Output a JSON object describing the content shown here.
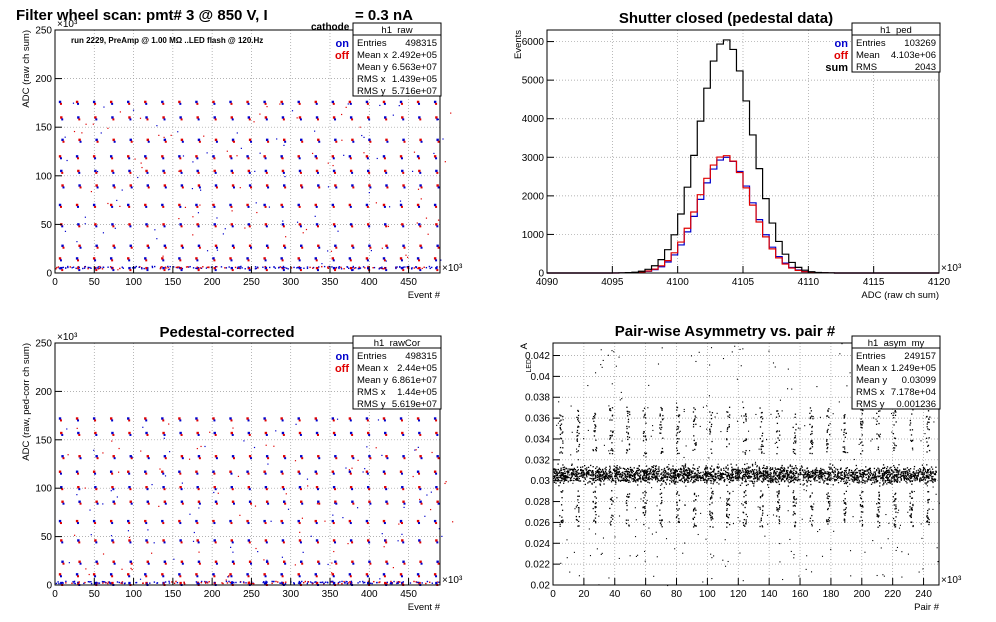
{
  "colors": {
    "on": "#0000cc",
    "off": "#e00000",
    "sum": "#000000",
    "grid": "#9a9a9a"
  },
  "chart_data": [
    {
      "id": "raw",
      "type": "scatter",
      "title": "Filter wheel scan: pmt#   3 @   850 V, I",
      "title_sub": "cathode",
      "title_tail": "= 0.3 nA",
      "annotation": "run 2229, PreAmp @ 1.00 MΩ ..LED flash @  120.Hz",
      "xlabel": "Event #",
      "ylabel": "ADC (raw ch sum)",
      "x_exponent": "×10³",
      "y_exponent": "×10³",
      "xlim": [
        0,
        490
      ],
      "ylim": [
        0,
        250
      ],
      "xticks": [
        0,
        50,
        100,
        150,
        200,
        250,
        300,
        350,
        400,
        450
      ],
      "yticks": [
        0,
        50,
        100,
        150,
        200,
        250
      ],
      "grid": true,
      "legend_position": "top-right",
      "legend": [
        "on",
        "off"
      ],
      "stats": {
        "name": "h1_raw",
        "rows": [
          [
            "Entries",
            "498315"
          ],
          [
            "Mean x",
            "2.492e+05"
          ],
          [
            "Mean y",
            "6.563e+07"
          ],
          [
            "RMS x",
            "1.439e+05"
          ],
          [
            "RMS y",
            "5.716e+07"
          ]
        ]
      },
      "levels": [
        176,
        160,
        137,
        120,
        105,
        90,
        70,
        50,
        28,
        15,
        5
      ],
      "period": 21.7
    },
    {
      "id": "ped",
      "type": "line",
      "title": "Shutter closed (pedestal data)",
      "xlabel": "ADC (raw ch sum)",
      "ylabel": "Events",
      "x_exponent": "×10³",
      "xlim": [
        4090,
        4120
      ],
      "ylim": [
        0,
        6300
      ],
      "xticks": [
        4090,
        4095,
        4100,
        4105,
        4110,
        4115,
        4120
      ],
      "yticks": [
        0,
        1000,
        2000,
        3000,
        4000,
        5000,
        6000
      ],
      "grid": true,
      "legend_position": "top-right",
      "legend": [
        "on",
        "off",
        "sum"
      ],
      "stats": {
        "name": "h1_ped",
        "rows": [
          [
            "Entries",
            "103269"
          ],
          [
            "Mean",
            "4.103e+06"
          ],
          [
            "RMS",
            "2043"
          ]
        ]
      },
      "series": [
        {
          "name": "on",
          "shape": "gaussian",
          "mean": 4103.7,
          "sigma": 2.05,
          "peak": 3000
        },
        {
          "name": "off",
          "shape": "gaussian",
          "mean": 4103.6,
          "sigma": 2.05,
          "peak": 3050
        },
        {
          "name": "sum",
          "shape": "gaussian",
          "mean": 4103.65,
          "sigma": 2.05,
          "peak": 6050
        }
      ],
      "bin_width": 0.5
    },
    {
      "id": "rawcor",
      "type": "scatter",
      "title": "Pedestal-corrected",
      "xlabel": "Event #",
      "ylabel": "ADC (raw, ped-corr ch sum)",
      "x_exponent": "×10³",
      "y_exponent": "×10³",
      "xlim": [
        0,
        490
      ],
      "ylim": [
        0,
        250
      ],
      "xticks": [
        0,
        50,
        100,
        150,
        200,
        250,
        300,
        350,
        400,
        450
      ],
      "yticks": [
        0,
        50,
        100,
        150,
        200,
        250
      ],
      "grid": true,
      "legend_position": "top-right",
      "legend": [
        "on",
        "off"
      ],
      "stats": {
        "name": "h1_rawCor",
        "rows": [
          [
            "Entries",
            "498315"
          ],
          [
            "Mean x",
            "2.44e+05"
          ],
          [
            "Mean y",
            "6.861e+07"
          ],
          [
            "RMS x",
            "1.44e+05"
          ],
          [
            "RMS y",
            "5.619e+07"
          ]
        ]
      },
      "levels": [
        172,
        157,
        133,
        117,
        101,
        86,
        66,
        46,
        24,
        11,
        2
      ],
      "period": 21.7
    },
    {
      "id": "asym",
      "type": "scatter",
      "title": "Pair-wise Asymmetry vs. pair #",
      "xlabel": "Pair #",
      "ylabel": "A",
      "ylabel_sub": "LED",
      "x_exponent": "×10³",
      "xlim": [
        0,
        250
      ],
      "ylim": [
        0.02,
        0.0432
      ],
      "xticks": [
        0,
        20,
        40,
        60,
        80,
        100,
        120,
        140,
        160,
        180,
        200,
        220,
        240
      ],
      "yticks": [
        0.02,
        0.022,
        0.024,
        0.026,
        0.028,
        0.03,
        0.032,
        0.034,
        0.036,
        0.038,
        0.04,
        0.042
      ],
      "grid": true,
      "stats": {
        "name": "h1_asym_my",
        "rows": [
          [
            "Entries",
            "249157"
          ],
          [
            "Mean x",
            "1.249e+05"
          ],
          [
            "Mean y",
            "0.03099"
          ],
          [
            "RMS x",
            "7.178e+04"
          ],
          [
            "RMS y",
            "0.001236"
          ]
        ]
      },
      "band_center": 0.0306,
      "band_halfwidth": 0.0011,
      "spike_period": 10.8
    }
  ]
}
